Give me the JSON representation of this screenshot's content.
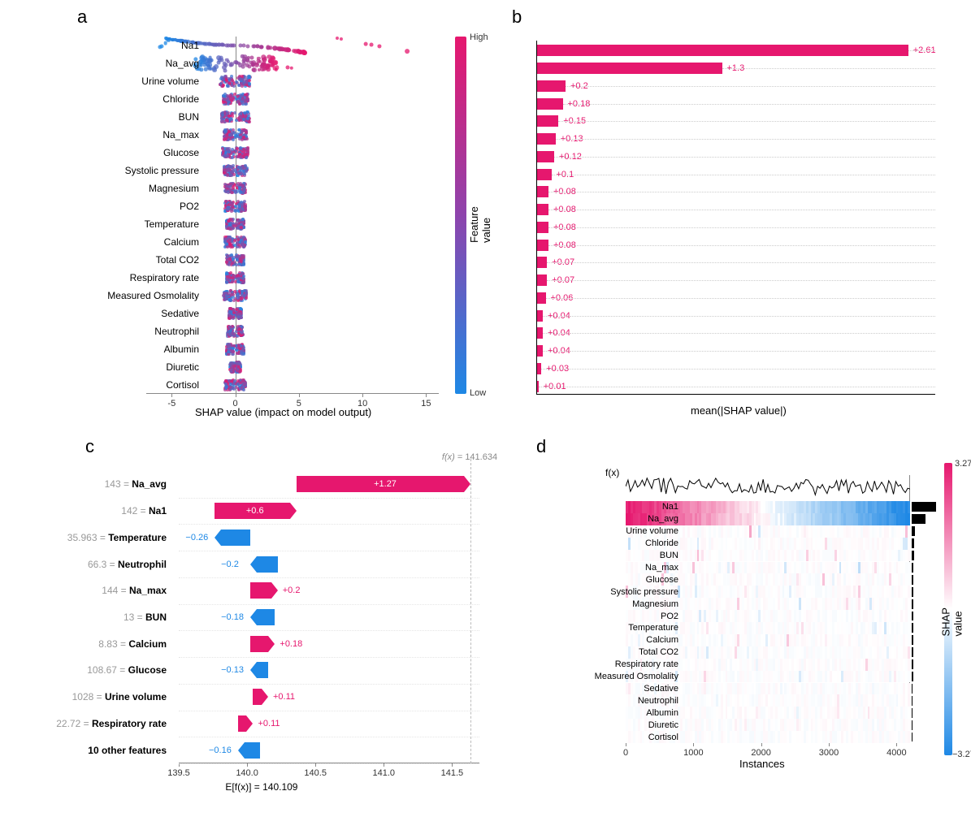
{
  "colors": {
    "pink": "#e6176e",
    "blue": "#1e88e5",
    "purple": "#8e44ad",
    "gray": "#888888",
    "lightgray": "#cccccc",
    "black": "#000000",
    "white": "#ffffff"
  },
  "features": [
    "Na1",
    "Na_avg",
    "Urine volume",
    "Chloride",
    "BUN",
    "Na_max",
    "Glucose",
    "Systolic pressure",
    "Magnesium",
    "PO2",
    "Temperature",
    "Calcium",
    "Total CO2",
    "Respiratory rate",
    "Measured Osmolality",
    "Sedative",
    "Neutrophil",
    "Albumin",
    "Diuretic",
    "Cortisol"
  ],
  "panel_a": {
    "label": "a",
    "type": "shap-beeswarm",
    "xlim": [
      -7,
      16
    ],
    "xticks": [
      -5,
      0,
      5,
      10,
      15
    ],
    "xlabel": "SHAP value (impact on model output)",
    "colorbar": {
      "low_label": "Low",
      "high_label": "High",
      "title": "Feature value",
      "gradient_top": "#e6176e",
      "gradient_bottom": "#1e88e5"
    },
    "spread": [
      5.5,
      3.2,
      1.2,
      1.0,
      1.1,
      0.9,
      1.0,
      0.9,
      0.8,
      0.8,
      0.7,
      0.8,
      0.7,
      0.7,
      0.9,
      0.5,
      0.6,
      0.7,
      0.4,
      0.8
    ],
    "row_height_scale": 1.0,
    "n_dots": 120
  },
  "panel_b": {
    "label": "b",
    "type": "horizontal-bar",
    "xlabel": "mean(|SHAP value|)",
    "xmax": 2.8,
    "values": [
      2.61,
      1.3,
      0.2,
      0.18,
      0.15,
      0.13,
      0.12,
      0.1,
      0.08,
      0.08,
      0.08,
      0.08,
      0.07,
      0.07,
      0.06,
      0.04,
      0.04,
      0.04,
      0.03,
      0.01
    ],
    "bar_color": "#e6176e",
    "label_color": "#e6176e"
  },
  "panel_c": {
    "label": "c",
    "type": "shap-waterfall",
    "fx_label": "f(x)",
    "fx_value": 141.634,
    "base_label": "E[f(x)]",
    "base_value": 140.109,
    "xlim": [
      139.5,
      141.7
    ],
    "xticks": [
      139.5,
      140.0,
      140.5,
      141.0,
      141.5
    ],
    "rows": [
      {
        "feat": "Na_avg",
        "val": "143",
        "shap": 1.27,
        "text_inside": true
      },
      {
        "feat": "Na1",
        "val": "142",
        "shap": 0.6,
        "text_inside": true
      },
      {
        "feat": "Temperature",
        "val": "35.963",
        "shap": -0.26,
        "text_inside": false
      },
      {
        "feat": "Neutrophil",
        "val": "66.3",
        "shap": -0.2,
        "text_inside": false
      },
      {
        "feat": "Na_max",
        "val": "144",
        "shap": 0.2,
        "text_inside": false
      },
      {
        "feat": "BUN",
        "val": "13",
        "shap": -0.18,
        "text_inside": false
      },
      {
        "feat": "Calcium",
        "val": "8.83",
        "shap": 0.18,
        "text_inside": false
      },
      {
        "feat": "Glucose",
        "val": "108.67",
        "shap": -0.13,
        "text_inside": false
      },
      {
        "feat": "Urine volume",
        "val": "1028",
        "shap": 0.11,
        "text_inside": false
      },
      {
        "feat": "Respiratory rate",
        "val": "22.72",
        "shap": 0.11,
        "text_inside": false
      },
      {
        "feat": "10 other features",
        "val": "",
        "shap": -0.16,
        "text_inside": false
      }
    ],
    "pos_color": "#e6176e",
    "neg_color": "#1e88e5"
  },
  "panel_d": {
    "label": "d",
    "type": "shap-heatmap",
    "xlabel": "Instances",
    "xlim": [
      0,
      4200
    ],
    "xticks": [
      0,
      1000,
      2000,
      3000,
      4000
    ],
    "fx_label": "f(x)",
    "colorbar": {
      "min": -3.274,
      "max": 3.274,
      "title": "SHAP value",
      "gradient_top": "#e6176e",
      "gradient_bottom": "#1e88e5"
    },
    "importance_bars": [
      1.0,
      0.55,
      0.12,
      0.1,
      0.09,
      0.08,
      0.08,
      0.07,
      0.06,
      0.06,
      0.06,
      0.06,
      0.05,
      0.05,
      0.05,
      0.03,
      0.03,
      0.03,
      0.02,
      0.01
    ],
    "n_cols": 120
  }
}
